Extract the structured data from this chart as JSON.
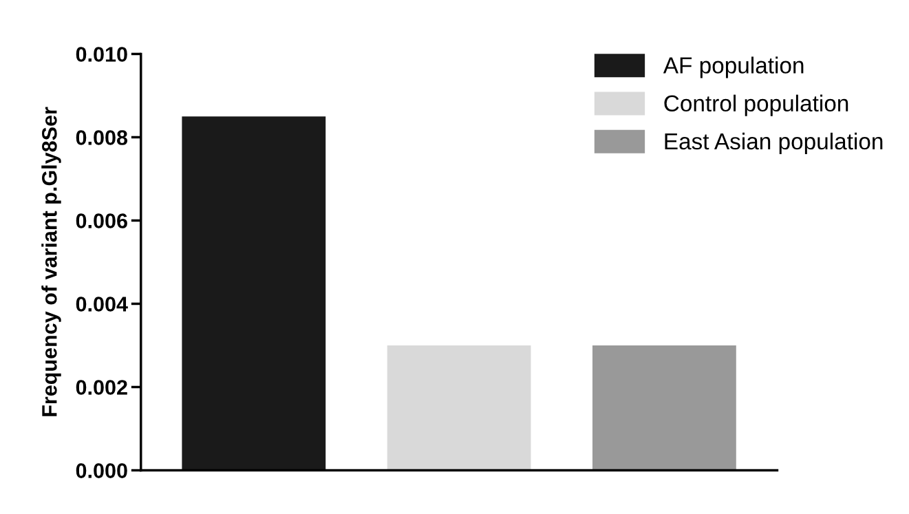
{
  "chart_data": {
    "type": "bar",
    "ylabel": "Frequency of variant p.Gly8Ser",
    "categories": [
      null,
      null,
      null
    ],
    "series": [
      {
        "name": "AF population",
        "color": "#1a1a1a",
        "values": [
          0.0085,
          null,
          null
        ]
      },
      {
        "name": "Control population",
        "color": "#d9d9d9",
        "values": [
          null,
          0.003,
          null
        ]
      },
      {
        "name": "East Asian population",
        "color": "#999999",
        "values": [
          null,
          null,
          0.003
        ]
      }
    ],
    "ylim": [
      0,
      0.01
    ],
    "yticks": [
      {
        "value": 0,
        "label": "0.000"
      },
      {
        "value": 0.002,
        "label": "0.002"
      },
      {
        "value": 0.004,
        "label": "0.004"
      },
      {
        "value": 0.006,
        "label": "0.006"
      },
      {
        "value": 0.008,
        "label": "0.008"
      },
      {
        "value": 0.01,
        "label": "0.010"
      }
    ],
    "tick_labels": "y",
    "legend": "top right",
    "grid": false
  }
}
